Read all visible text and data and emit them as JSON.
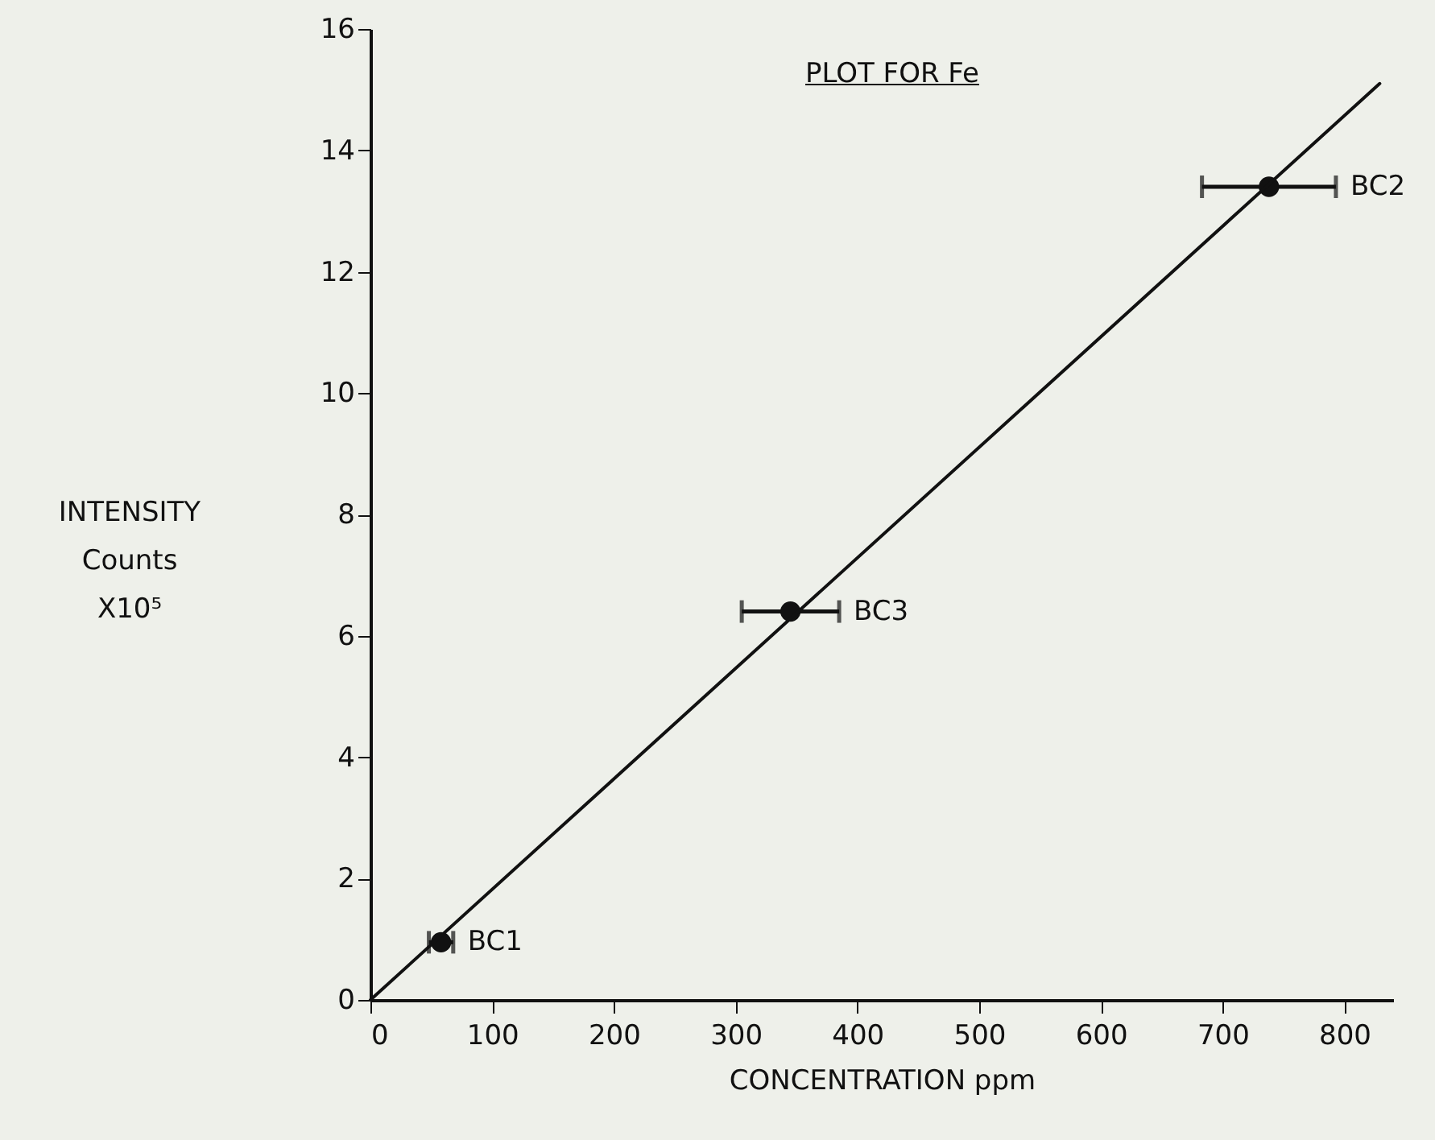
{
  "chart_data": {
    "type": "scatter",
    "title": "PLOT FOR Fe",
    "xlabel": "CONCENTRATION ppm",
    "ylabel": "INTENSITY\nCounts\nX10⁵",
    "xlim": [
      0,
      840
    ],
    "xticks": [
      0,
      100,
      200,
      300,
      400,
      500,
      600,
      700,
      800
    ],
    "ylim": [
      0,
      16
    ],
    "yticks": [
      0,
      2,
      4,
      6,
      8,
      10,
      12,
      14,
      16
    ],
    "grid": false,
    "line_style": "solid",
    "series": [
      {
        "color": "#111111",
        "x": [
          58,
          345,
          738
        ],
        "values": [
          0.95,
          6.4,
          13.4
        ],
        "xerrors": [
          10,
          40,
          55
        ],
        "marker": "circle"
      },
      {
        "type": "line",
        "color": "#111111",
        "x": [
          0,
          829
        ],
        "values": [
          0,
          15.1
        ]
      }
    ],
    "annotations": [
      {
        "text": "BC1",
        "x": 58,
        "y": 0.95
      },
      {
        "text": "BC3",
        "x": 345,
        "y": 6.4
      },
      {
        "text": "BC2",
        "x": 738,
        "y": 13.4
      }
    ]
  }
}
